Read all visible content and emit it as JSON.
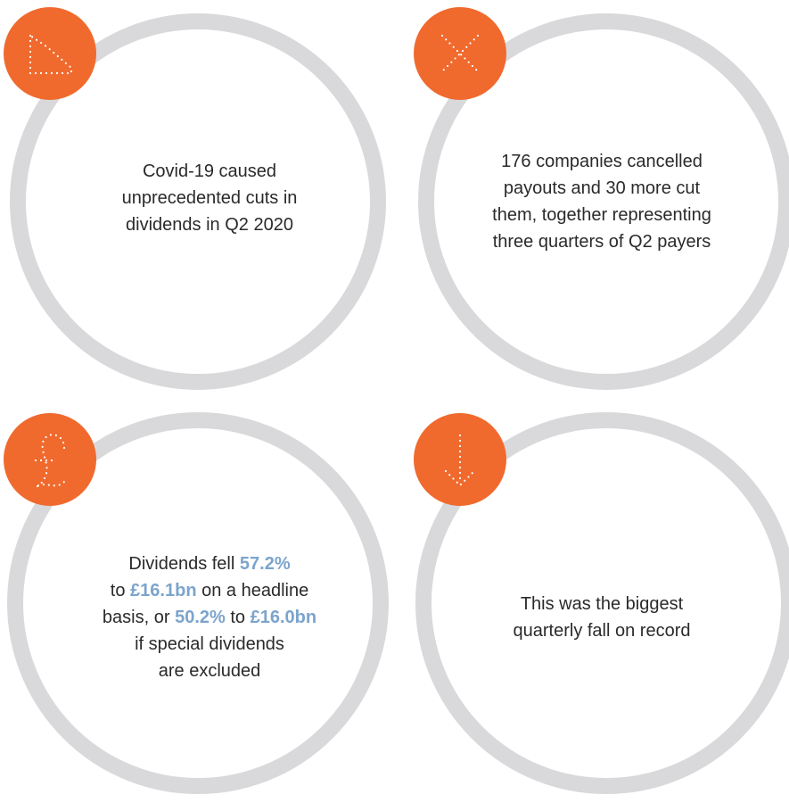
{
  "cards": [
    {
      "lines": [
        "Covid-19 caused",
        "unprecedented cuts in",
        "dividends in Q2 2020"
      ]
    },
    {
      "lines": [
        "176 companies cancelled",
        "payouts and 30 more cut",
        "them, together representing",
        "three quarters of Q2 payers"
      ]
    },
    {
      "lines": [
        [
          {
            "text": "Dividends fell "
          },
          {
            "text": "57.2%",
            "color": "#7ca4cc"
          }
        ],
        [
          {
            "text": "to "
          },
          {
            "text": "£16.1bn",
            "color": "#7ca4cc"
          },
          {
            "text": " on a headline"
          }
        ],
        [
          {
            "text": "basis, or "
          },
          {
            "text": "50.2%",
            "color": "#7ca4cc"
          },
          {
            "text": " to "
          },
          {
            "text": "£16.0bn",
            "color": "#7ca4cc"
          }
        ],
        [
          {
            "text": "if special dividends"
          }
        ],
        [
          {
            "text": "are excluded"
          }
        ]
      ]
    },
    {
      "lines": [
        "This was the biggest",
        "quarterly fall on record"
      ]
    }
  ]
}
